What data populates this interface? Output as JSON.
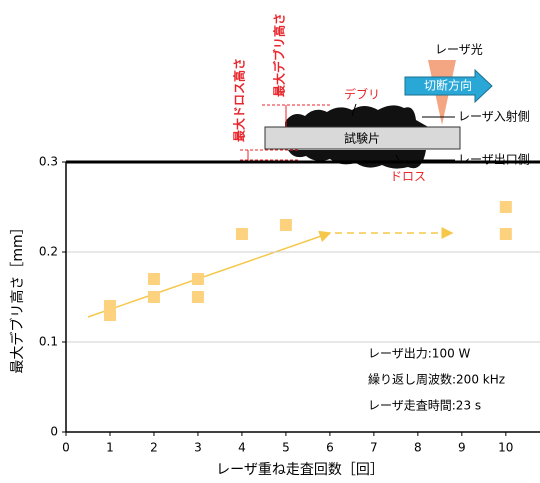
{
  "chart_data": {
    "type": "scatter",
    "x_label": "レーザ重ね走査回数［回］",
    "y_label": "最大デブリ高さ［mm］",
    "xlim": [
      0,
      10.8
    ],
    "xticks": [
      0,
      1,
      2,
      3,
      4,
      5,
      6,
      7,
      8,
      9,
      10
    ],
    "ylim": [
      0,
      0.3
    ],
    "yticks": [
      0,
      0.1,
      0.2,
      0.3
    ],
    "grid": true,
    "color": "#fcd27e",
    "x": [
      1,
      1,
      2,
      2,
      3,
      3,
      4,
      5,
      10,
      10
    ],
    "values": [
      0.14,
      0.13,
      0.17,
      0.15,
      0.17,
      0.15,
      0.22,
      0.23,
      0.25,
      0.22
    ],
    "annotations": [
      "レーザ出力:100 W",
      "繰り返し周波数:200 kHz",
      "レーザ走査時間:23 s"
    ]
  },
  "diagram": {
    "max_debris_height": "最大デブリ高さ",
    "max_dross_height": "最大ドロス高さ",
    "debris": "デブリ",
    "laser_light": "レーザ光",
    "cut_direction": "切断方向",
    "laser_entry_side": "レーザ入射側",
    "specimen": "試験片",
    "laser_exit_side": "レーザ出口側",
    "dross": "ドロス"
  }
}
